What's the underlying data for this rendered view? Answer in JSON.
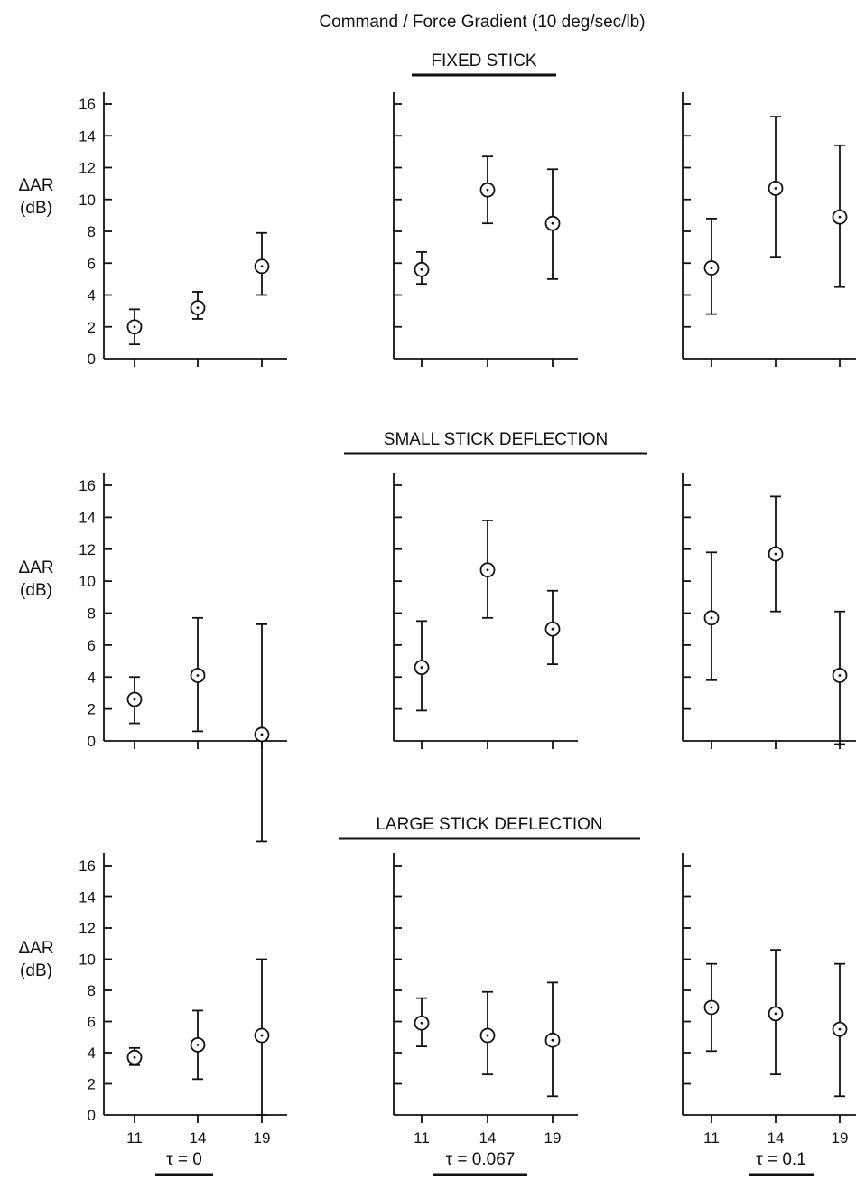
{
  "figure_title": "Command / Force Gradient  (10 deg/sec/lb)",
  "ylabel_line1": "ΔAR",
  "ylabel_line2": "(dB)",
  "tau_labels": [
    "τ = 0",
    "τ = 0.067",
    "τ = 0.1"
  ],
  "ink_color": "#111111",
  "chart_data": [
    {
      "type": "scatter",
      "title": "FIXED STICK",
      "subtitle": "τ = 0",
      "x": [
        11,
        14,
        19
      ],
      "y": [
        2.0,
        3.2,
        5.8
      ],
      "err_low": [
        0.9,
        2.5,
        4.0
      ],
      "err_high": [
        3.1,
        4.2,
        7.9
      ],
      "ylim": [
        0,
        16
      ],
      "yticks": [
        0,
        2,
        4,
        6,
        8,
        10,
        12,
        14,
        16
      ],
      "xticks": [
        11,
        14,
        19
      ]
    },
    {
      "type": "scatter",
      "title": "FIXED STICK",
      "subtitle": "τ = 0.067",
      "x": [
        11,
        14,
        19
      ],
      "y": [
        5.6,
        10.6,
        8.5
      ],
      "err_low": [
        4.7,
        8.5,
        5.0
      ],
      "err_high": [
        6.7,
        12.7,
        11.9
      ],
      "ylim": [
        0,
        16
      ],
      "xticks": [
        11,
        14,
        19
      ]
    },
    {
      "type": "scatter",
      "title": "FIXED STICK",
      "subtitle": "τ = 0.1",
      "x": [
        11,
        14,
        19
      ],
      "y": [
        5.7,
        10.7,
        8.9
      ],
      "err_low": [
        2.8,
        6.4,
        4.5
      ],
      "err_high": [
        8.8,
        15.2,
        13.4
      ],
      "ylim": [
        0,
        16
      ],
      "xticks": [
        11,
        14,
        19
      ]
    },
    {
      "type": "scatter",
      "title": "SMALL STICK DEFLECTION",
      "subtitle": "τ = 0",
      "x": [
        11,
        14,
        19
      ],
      "y": [
        2.6,
        4.1,
        0.4
      ],
      "err_low": [
        1.1,
        0.6,
        -6.3
      ],
      "err_high": [
        4.0,
        7.7,
        7.3
      ],
      "ylim": [
        0,
        16
      ],
      "yticks": [
        0,
        2,
        4,
        6,
        8,
        10,
        12,
        14,
        16
      ],
      "xticks": [
        11,
        14,
        19
      ]
    },
    {
      "type": "scatter",
      "title": "SMALL STICK DEFLECTION",
      "subtitle": "τ = 0.067",
      "x": [
        11,
        14,
        19
      ],
      "y": [
        4.6,
        10.7,
        7.0
      ],
      "err_low": [
        1.9,
        7.7,
        4.8
      ],
      "err_high": [
        7.5,
        13.8,
        9.4
      ],
      "ylim": [
        0,
        16
      ],
      "xticks": [
        11,
        14,
        19
      ]
    },
    {
      "type": "scatter",
      "title": "SMALL STICK DEFLECTION",
      "subtitle": "τ = 0.1",
      "x": [
        11,
        14,
        19
      ],
      "y": [
        7.7,
        11.7,
        4.1
      ],
      "err_low": [
        3.8,
        8.1,
        -0.2
      ],
      "err_high": [
        11.8,
        15.3,
        8.1
      ],
      "ylim": [
        0,
        16
      ],
      "xticks": [
        11,
        14,
        19
      ]
    },
    {
      "type": "scatter",
      "title": "LARGE STICK DEFLECTION",
      "subtitle": "τ = 0",
      "x": [
        11,
        14,
        19
      ],
      "y": [
        3.7,
        4.5,
        5.1
      ],
      "err_low": [
        3.2,
        2.3,
        0.0
      ],
      "err_high": [
        4.3,
        6.7,
        10.0
      ],
      "ylim": [
        0,
        16
      ],
      "yticks": [
        0,
        2,
        4,
        6,
        8,
        10,
        12,
        14,
        16
      ],
      "xticks": [
        11,
        14,
        19
      ]
    },
    {
      "type": "scatter",
      "title": "LARGE STICK DEFLECTION",
      "subtitle": "τ = 0.067",
      "x": [
        11,
        14,
        19
      ],
      "y": [
        5.9,
        5.1,
        4.8
      ],
      "err_low": [
        4.4,
        2.6,
        1.2
      ],
      "err_high": [
        7.5,
        7.9,
        8.5
      ],
      "ylim": [
        0,
        16
      ],
      "xticks": [
        11,
        14,
        19
      ]
    },
    {
      "type": "scatter",
      "title": "LARGE STICK DEFLECTION",
      "subtitle": "τ = 0.1",
      "x": [
        11,
        14,
        19
      ],
      "y": [
        6.9,
        6.5,
        5.5
      ],
      "err_low": [
        4.1,
        2.6,
        1.2
      ],
      "err_high": [
        9.7,
        10.6,
        9.7
      ],
      "ylim": [
        0,
        16
      ],
      "xticks": [
        11,
        14,
        19
      ]
    }
  ]
}
